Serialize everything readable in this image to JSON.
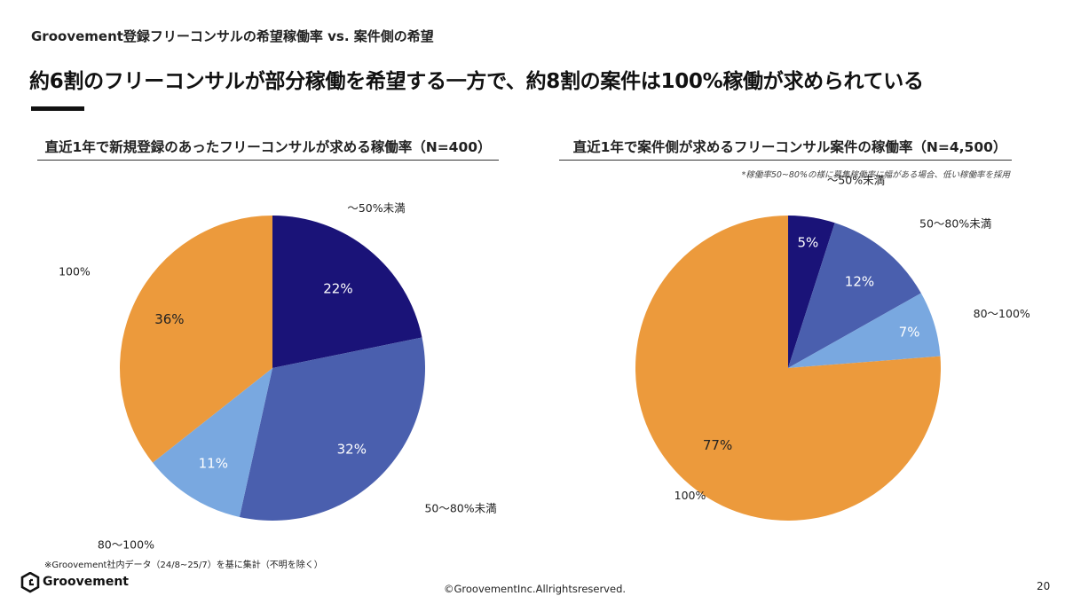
{
  "header": {
    "section_title": "Groovement登録フリーコンサルの希望稼働率 vs. 案件側の希望",
    "headline": "約6割のフリーコンサルが部分稼働を希望する一方で、約8割の案件は100%稼働が求められている"
  },
  "colors": {
    "under_50": "#1a1378",
    "range_50_80": "#4a5fae",
    "range_80_100": "#79a8e0",
    "full_100": "#ec9a3c"
  },
  "chart_data": [
    {
      "type": "pie",
      "title": "直近1年で新規登録のあったフリーコンサルが求める稼働率（N=400）",
      "categories": [
        "～50%未満",
        "50～80%未満",
        "80～100%",
        "100%"
      ],
      "values": [
        22,
        32,
        11,
        36
      ],
      "value_labels": [
        "22%",
        "32%",
        "11%",
        "36%"
      ],
      "colors": [
        "#1a1378",
        "#4a5fae",
        "#79a8e0",
        "#ec9a3c"
      ]
    },
    {
      "type": "pie",
      "title": "直近1年で案件側が求めるフリーコンサル案件の稼働率（N=4,500）",
      "note": "*稼働率50~80%の様に募集稼働率に幅がある場合、低い稼働率を採用",
      "categories": [
        "～50%未満",
        "50～80%未満",
        "80～100%",
        "100%"
      ],
      "values": [
        5,
        12,
        7,
        77
      ],
      "value_labels": [
        "5%",
        "12%",
        "7%",
        "77%"
      ],
      "colors": [
        "#1a1378",
        "#4a5fae",
        "#79a8e0",
        "#ec9a3c"
      ]
    }
  ],
  "footer": {
    "footnote": "※Groovement社内データ（24/8~25/7）を基に集計（不明を除く）",
    "copyright": "©GroovementInc.Allrightsreserved.",
    "page_number": "20",
    "logo_text": "Groovement"
  }
}
